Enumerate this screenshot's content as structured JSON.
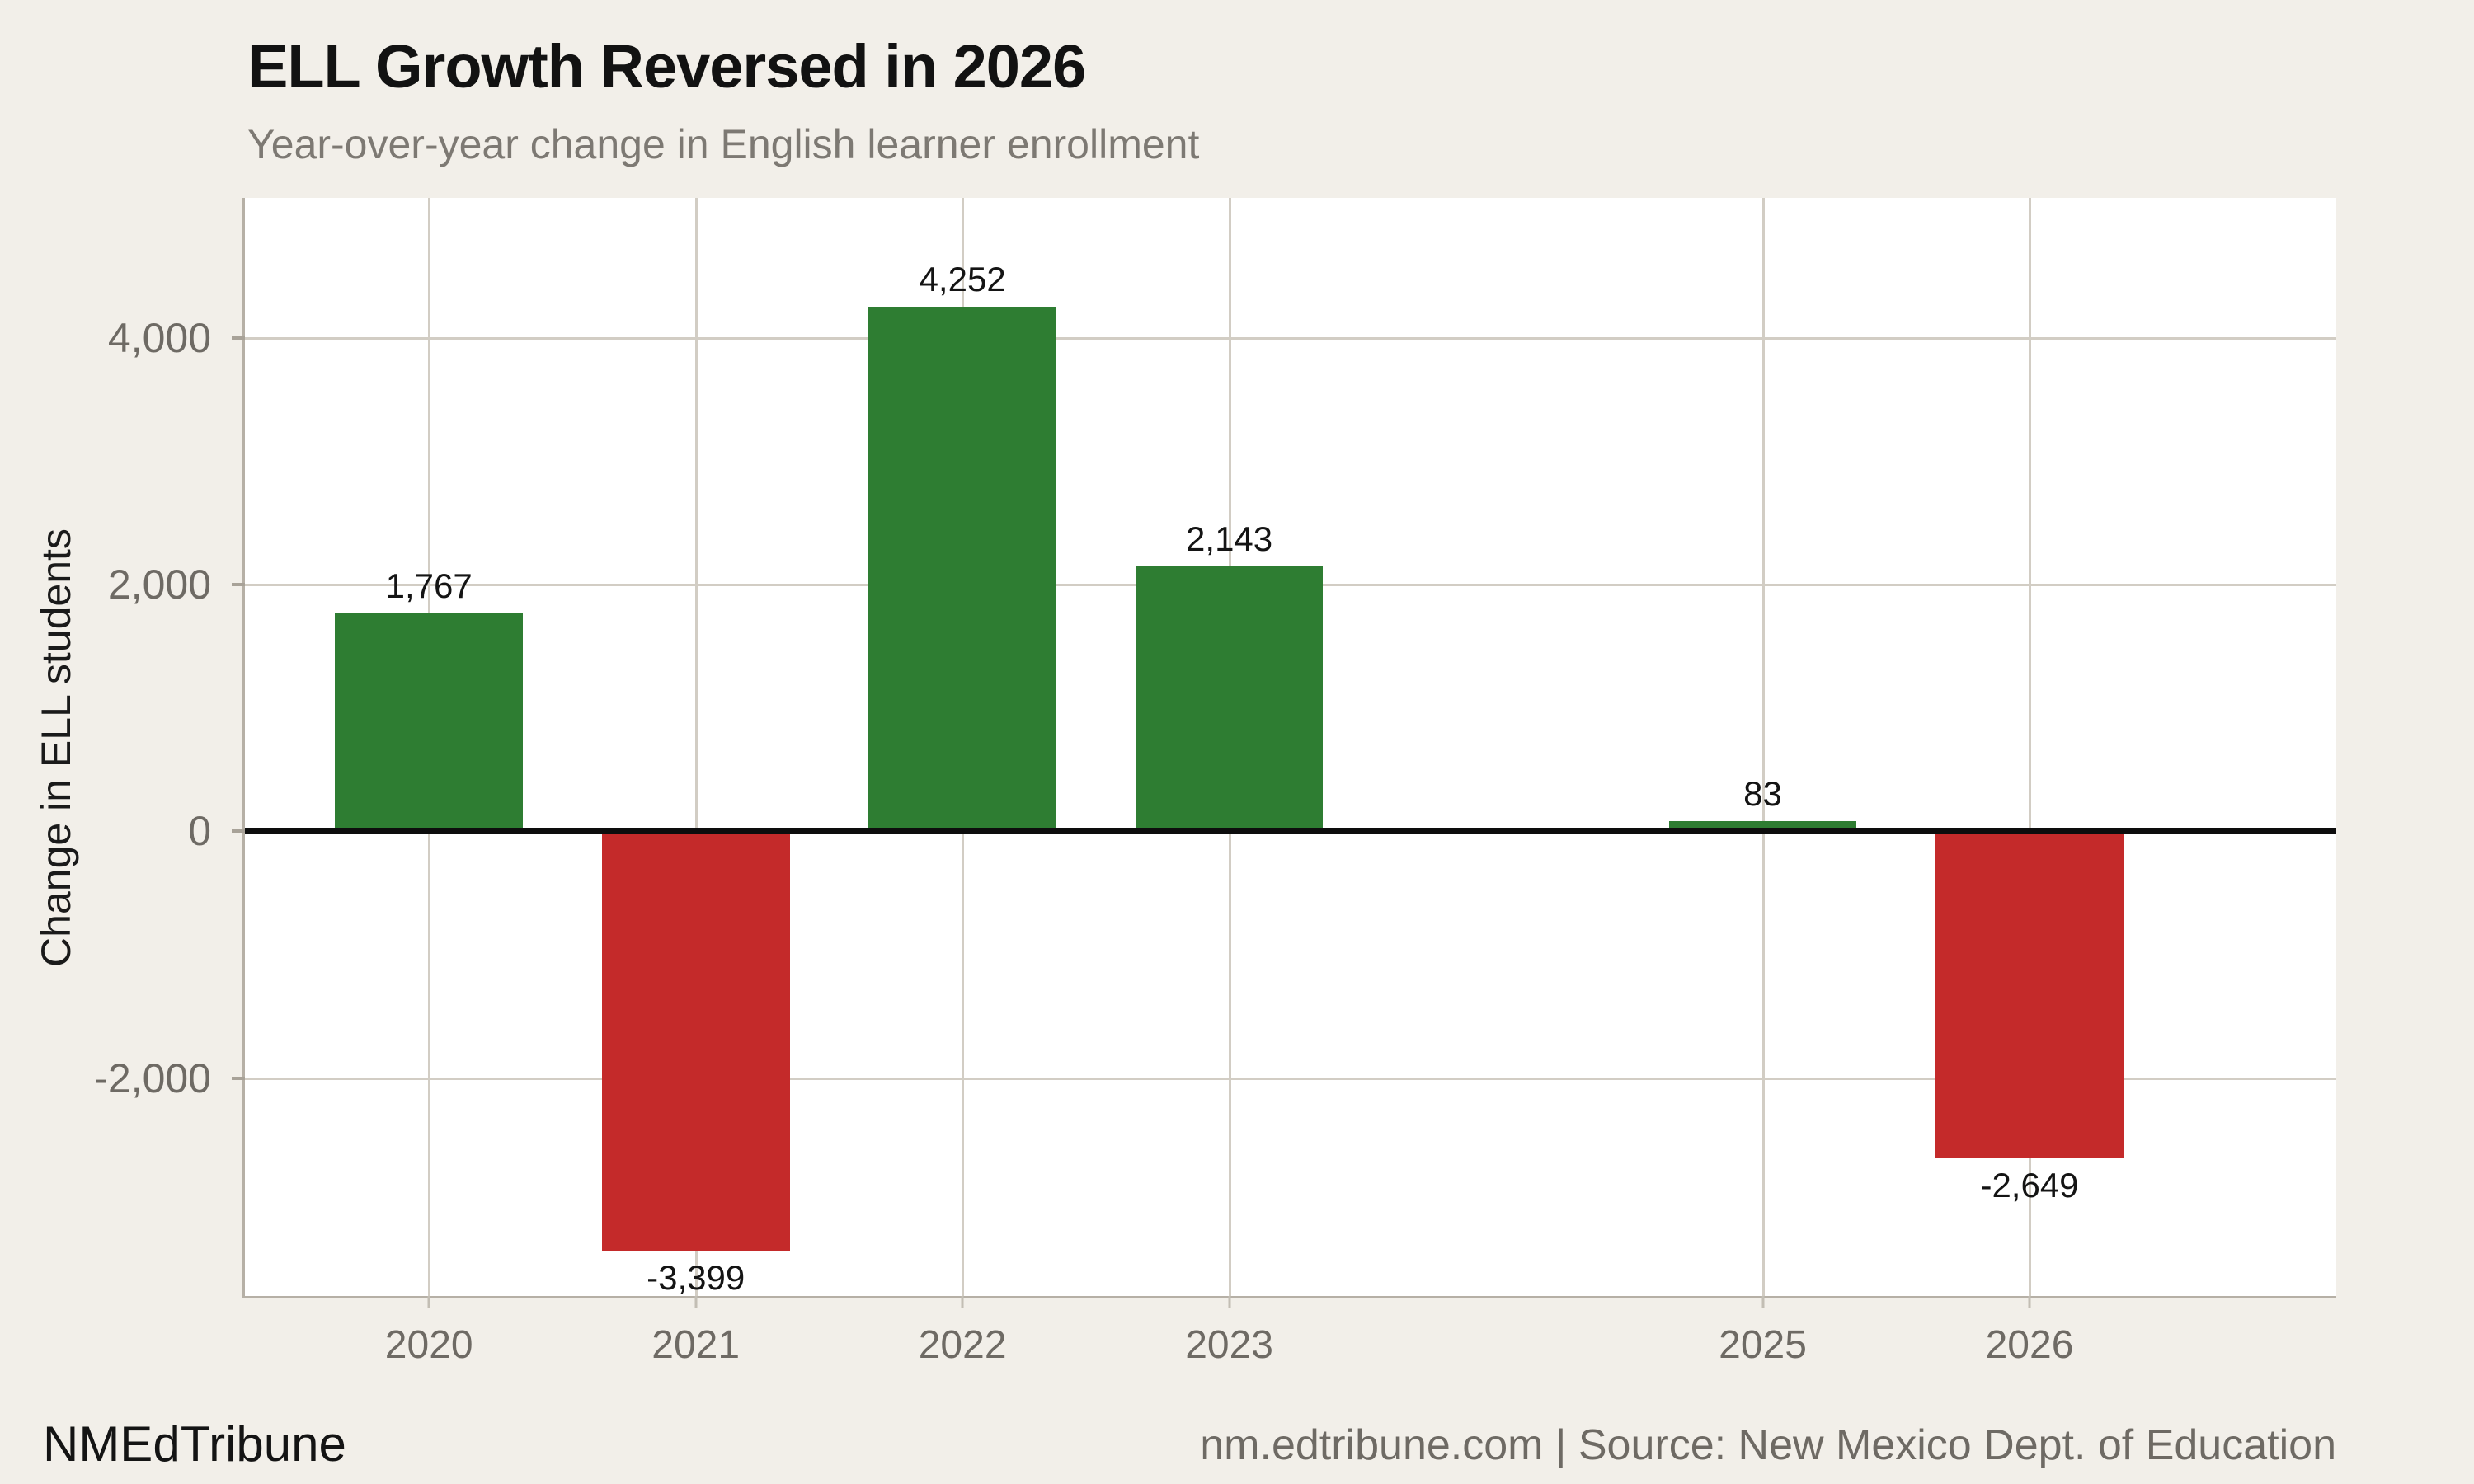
{
  "footer": {
    "brand": "NMEdTribune",
    "source_line": "nm.edtribune.com | Source: New Mexico Dept. of Education"
  },
  "chart_data": {
    "type": "bar",
    "title": "ELL Growth Reversed in 2026",
    "subtitle": "Year-over-year change in English learner enrollment",
    "xlabel": "",
    "ylabel": "Change in ELL students",
    "categories": [
      2020,
      2021,
      2022,
      2023,
      2025,
      2026
    ],
    "values": [
      1767,
      -3399,
      4252,
      2143,
      83,
      -2649
    ],
    "bar_labels": [
      "1,767",
      "-3,399",
      "4,252",
      "2,143",
      "83",
      "-2,649"
    ],
    "xtick_labels": [
      "2020",
      "2021",
      "2022",
      "2023",
      "2025",
      "2026"
    ],
    "yticks": [
      {
        "value": -2000,
        "label": "-2,000"
      },
      {
        "value": 0,
        "label": "0"
      },
      {
        "value": 2000,
        "label": "2,000"
      },
      {
        "value": 4000,
        "label": "4,000"
      }
    ],
    "xlim": [
      2019.31,
      2027.15
    ],
    "ylim": [
      -3767,
      5133
    ],
    "bar_width_years": 0.704,
    "grid": true,
    "zero_line": true,
    "legend": "none",
    "colors": {
      "positive": "#2e7d32",
      "negative": "#c42a2a",
      "background": "#f2efe9",
      "plot_background": "#ffffff",
      "gridline": "#d2cdc4",
      "axis_border": "#b6b0a6",
      "zero_line": "#0d0d0d",
      "tick_text": "#6e6a64",
      "subtitle_text": "#7d7973"
    }
  }
}
